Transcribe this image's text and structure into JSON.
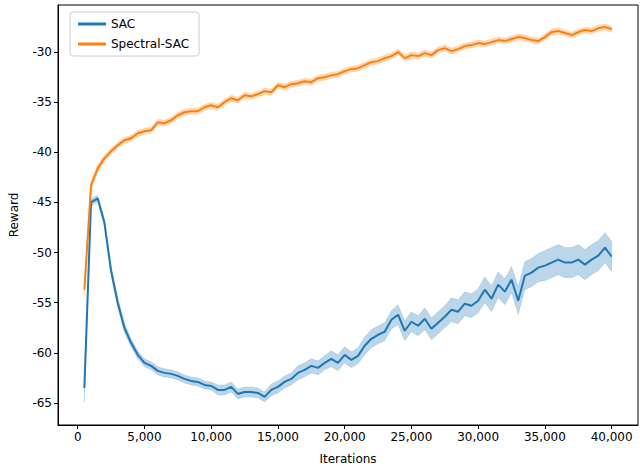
{
  "chart_data": {
    "type": "line",
    "x_label": "Iterations",
    "y_label": "Reward",
    "xlim": [
      -1475,
      41975
    ],
    "xticks": [
      0,
      5000,
      10000,
      15000,
      20000,
      25000,
      30000,
      35000,
      40000
    ],
    "ylim": [
      -67.2,
      -25.3
    ],
    "yticks": [
      -65,
      -60,
      -55,
      -50,
      -45,
      -40,
      -35,
      -30
    ],
    "grid": false,
    "legend": "upper left",
    "x": [
      500,
      1000,
      1500,
      2000,
      2500,
      3000,
      3500,
      4000,
      4500,
      5000,
      5500,
      6000,
      6500,
      7000,
      7500,
      8000,
      8500,
      9000,
      9500,
      10000,
      10500,
      11000,
      11500,
      12000,
      12500,
      13000,
      13500,
      14000,
      14500,
      15000,
      15500,
      16000,
      16500,
      17000,
      17500,
      18000,
      18500,
      19000,
      19500,
      20000,
      20500,
      21000,
      21500,
      22000,
      22500,
      23000,
      23500,
      24000,
      24500,
      25000,
      25500,
      26000,
      26500,
      27000,
      27500,
      28000,
      28500,
      29000,
      29500,
      30000,
      30500,
      31000,
      31500,
      32000,
      32500,
      33000,
      33500,
      34000,
      34500,
      35000,
      35500,
      36000,
      36500,
      37000,
      37500,
      38000,
      38500,
      39000,
      39500,
      40000
    ],
    "series": [
      {
        "name": "SAC",
        "color": "#1f77b4",
        "values": [
          -63.5,
          -45.0,
          -44.6,
          -47.0,
          -51.8,
          -55.0,
          -57.5,
          -59.0,
          -60.2,
          -61.0,
          -61.3,
          -61.8,
          -62.0,
          -62.1,
          -62.3,
          -62.6,
          -62.8,
          -62.9,
          -63.2,
          -63.3,
          -63.7,
          -63.7,
          -63.4,
          -64.1,
          -63.9,
          -63.9,
          -64.0,
          -64.4,
          -63.7,
          -63.4,
          -62.9,
          -62.6,
          -62.0,
          -61.7,
          -61.3,
          -61.5,
          -61.0,
          -60.6,
          -61.0,
          -60.2,
          -60.7,
          -60.3,
          -59.3,
          -58.6,
          -58.2,
          -57.9,
          -56.7,
          -56.2,
          -57.8,
          -56.9,
          -57.3,
          -56.6,
          -57.6,
          -57.0,
          -56.4,
          -55.7,
          -55.9,
          -55.1,
          -55.3,
          -54.8,
          -53.7,
          -54.6,
          -53.2,
          -53.9,
          -52.7,
          -54.8,
          -52.3,
          -52.0,
          -51.5,
          -51.3,
          -51.0,
          -50.7,
          -51.0,
          -51.0,
          -50.7,
          -51.2,
          -50.7,
          -50.3,
          -49.5,
          -50.4
        ],
        "error": [
          1.4,
          0.4,
          0.3,
          0.4,
          0.5,
          0.5,
          0.5,
          0.4,
          0.4,
          0.4,
          0.4,
          0.4,
          0.4,
          0.4,
          0.4,
          0.4,
          0.4,
          0.4,
          0.4,
          0.4,
          0.5,
          0.5,
          0.5,
          0.5,
          0.5,
          0.5,
          0.5,
          0.5,
          0.6,
          0.6,
          0.6,
          0.6,
          0.7,
          0.7,
          0.7,
          0.7,
          0.7,
          0.8,
          0.8,
          0.8,
          0.8,
          0.8,
          0.9,
          0.9,
          0.9,
          0.9,
          0.9,
          1.0,
          1.0,
          1.0,
          1.0,
          1.1,
          1.1,
          1.1,
          1.1,
          1.2,
          1.2,
          1.2,
          1.2,
          1.2,
          1.3,
          1.3,
          1.3,
          1.3,
          1.3,
          1.4,
          1.4,
          1.4,
          1.4,
          1.5,
          1.5,
          1.5,
          1.5,
          1.5,
          1.5,
          1.5,
          1.5,
          1.5,
          1.5,
          1.5
        ]
      },
      {
        "name": "Spectral-SAC",
        "color": "#ff7f0e",
        "values": [
          -53.7,
          -43.3,
          -41.6,
          -40.6,
          -39.9,
          -39.3,
          -38.8,
          -38.6,
          -38.1,
          -37.9,
          -37.8,
          -37.0,
          -37.1,
          -36.8,
          -36.3,
          -36.0,
          -35.9,
          -35.9,
          -35.5,
          -35.3,
          -35.5,
          -35.0,
          -34.6,
          -34.8,
          -34.3,
          -34.4,
          -34.2,
          -33.9,
          -34.0,
          -33.3,
          -33.5,
          -33.2,
          -33.1,
          -32.9,
          -33.0,
          -32.6,
          -32.5,
          -32.3,
          -32.2,
          -31.9,
          -31.7,
          -31.6,
          -31.3,
          -31.0,
          -30.9,
          -30.6,
          -30.4,
          -30.0,
          -30.6,
          -30.3,
          -30.4,
          -30.1,
          -30.3,
          -29.8,
          -29.6,
          -29.9,
          -29.7,
          -29.4,
          -29.3,
          -29.1,
          -29.2,
          -29.0,
          -28.8,
          -28.9,
          -28.7,
          -28.5,
          -28.6,
          -28.8,
          -28.9,
          -28.5,
          -28.0,
          -27.9,
          -28.1,
          -28.3,
          -28.0,
          -27.8,
          -27.9,
          -27.6,
          -27.5,
          -27.7
        ],
        "error": [
          0.6,
          0.4,
          0.4,
          0.3,
          0.3,
          0.3,
          0.3,
          0.3,
          0.3,
          0.3,
          0.3,
          0.3,
          0.3,
          0.3,
          0.3,
          0.3,
          0.3,
          0.3,
          0.3,
          0.3,
          0.3,
          0.3,
          0.3,
          0.3,
          0.3,
          0.3,
          0.3,
          0.3,
          0.3,
          0.3,
          0.3,
          0.3,
          0.3,
          0.3,
          0.3,
          0.3,
          0.3,
          0.3,
          0.3,
          0.3,
          0.3,
          0.3,
          0.3,
          0.3,
          0.3,
          0.3,
          0.3,
          0.3,
          0.3,
          0.3,
          0.3,
          0.3,
          0.3,
          0.3,
          0.3,
          0.3,
          0.3,
          0.3,
          0.3,
          0.3,
          0.3,
          0.3,
          0.3,
          0.3,
          0.3,
          0.3,
          0.3,
          0.3,
          0.3,
          0.3,
          0.3,
          0.3,
          0.3,
          0.3,
          0.3,
          0.3,
          0.3,
          0.3,
          0.3,
          0.3
        ]
      }
    ]
  }
}
